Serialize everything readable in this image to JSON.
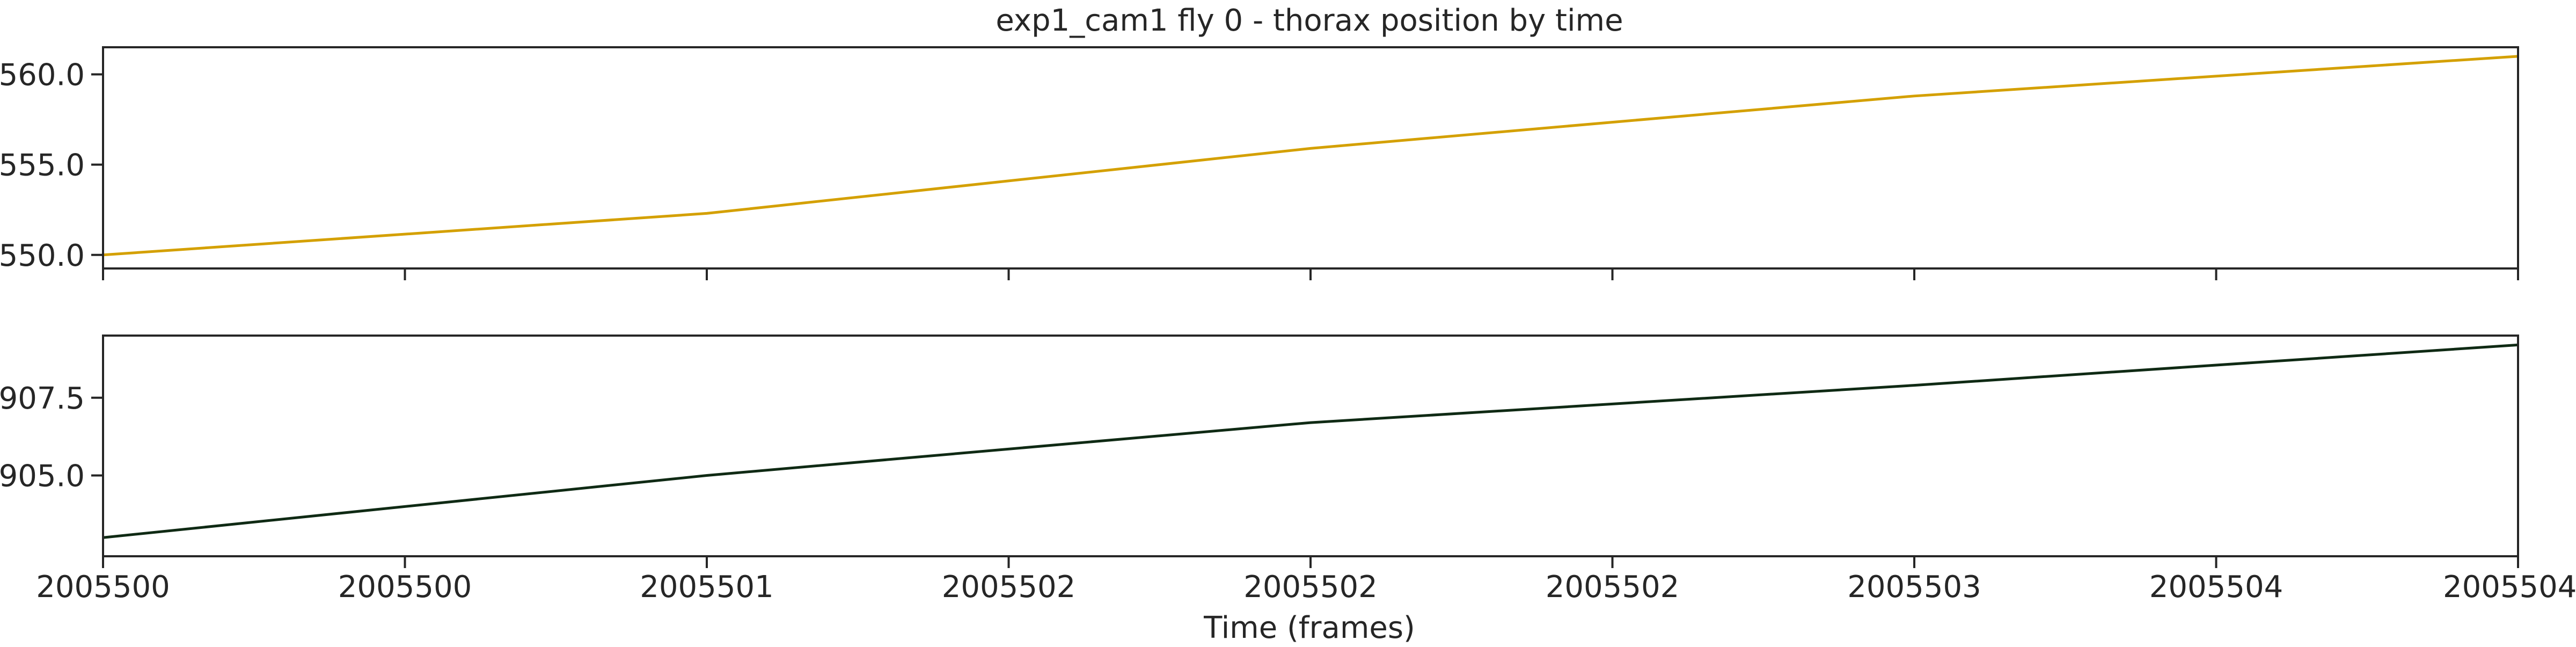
{
  "chart_data": {
    "type": "line",
    "title": "exp1_cam1 fly 0 - thorax position by time",
    "xlabel": "Time (frames)",
    "x_tick_labels": [
      "2005500",
      "2005500",
      "2005501",
      "2005502",
      "2005502",
      "2005502",
      "2005503",
      "2005504",
      "2005504"
    ],
    "xlim": [
      2005500.0,
      2005504.0
    ],
    "grid": false,
    "legend": "none",
    "panels": [
      {
        "ylabel": "",
        "ylim": [
          549.25,
          561.5
        ],
        "y_ticks": [
          550.0,
          555.0,
          560.0
        ],
        "y_tick_labels": [
          "550.0",
          "555.0",
          "560.0"
        ],
        "series": [
          {
            "color": "#d4a000",
            "x": [
              2005500.0,
              2005501.0,
              2005502.0,
              2005503.0,
              2005504.0
            ],
            "y": [
              550.0,
              552.3,
              555.9,
              558.8,
              561.0
            ]
          }
        ]
      },
      {
        "ylabel": "",
        "ylim": [
          902.4,
          909.5
        ],
        "y_ticks": [
          905.0,
          907.5
        ],
        "y_tick_labels": [
          "905.0",
          "907.5"
        ],
        "series": [
          {
            "color": "#0f2a14",
            "x": [
              2005500.0,
              2005501.0,
              2005502.0,
              2005503.0,
              2005504.0
            ],
            "y": [
              903.0,
              905.0,
              906.7,
              907.9,
              909.2
            ]
          }
        ]
      }
    ]
  }
}
